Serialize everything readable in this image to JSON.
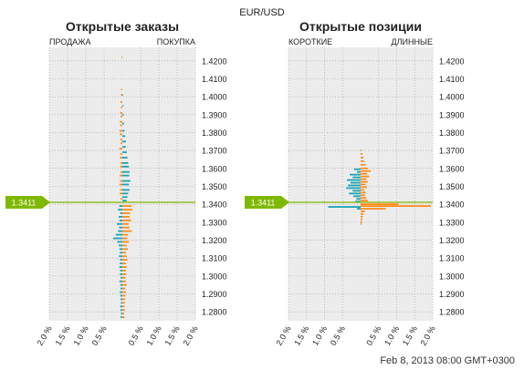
{
  "header": {
    "symbol": "EUR/USD"
  },
  "footer": {
    "timestamp": "Feb 8, 2013 08:00 GMT+0300"
  },
  "current_price_label": "1.3411",
  "colors": {
    "left_side": "#1aa3b3",
    "right_side": "#ff8c1a",
    "price_line": "#7fb800",
    "plot_bg": "#ececec",
    "grid": "#aaaaaa"
  },
  "chart_data": [
    {
      "type": "bar",
      "title": "Открытые заказы",
      "left_label": "ПРОДАЖА",
      "right_label": "ПОКУПКА",
      "y_ticks": [
        "1.4200",
        "1.4100",
        "1.4000",
        "1.3900",
        "1.3800",
        "1.3700",
        "1.3600",
        "1.3500",
        "1.3400",
        "1.3300",
        "1.3200",
        "1.3100",
        "1.3000",
        "1.2900",
        "1.2800"
      ],
      "x_ticks": [
        "2.0 %",
        "1.5 %",
        "1.0 %",
        "0.5 %",
        "0.5 %",
        "1.0 %",
        "1.5 %",
        "2.0 %"
      ],
      "xlim": [
        -2.0,
        2.0
      ],
      "ylim": [
        1.275,
        1.4275
      ],
      "current_price": 1.3411,
      "series": [
        {
          "name": "ПРОДАЖА",
          "points": [
            [
              1.422,
              0.02
            ],
            [
              1.412,
              0.01
            ],
            [
              1.404,
              0.03
            ],
            [
              1.401,
              0.04
            ],
            [
              1.397,
              0.05
            ],
            [
              1.394,
              0.04
            ],
            [
              1.391,
              0.06
            ],
            [
              1.389,
              0.05
            ],
            [
              1.386,
              0.07
            ],
            [
              1.384,
              0.06
            ],
            [
              1.381,
              0.08
            ],
            [
              1.379,
              0.07
            ],
            [
              1.376,
              0.06
            ],
            [
              1.374,
              0.05
            ],
            [
              1.371,
              0.08
            ],
            [
              1.368,
              0.06
            ],
            [
              1.366,
              0.07
            ],
            [
              1.363,
              0.05
            ],
            [
              1.361,
              0.06
            ],
            [
              1.358,
              0.05
            ],
            [
              1.356,
              0.07
            ],
            [
              1.353,
              0.06
            ],
            [
              1.351,
              0.08
            ],
            [
              1.348,
              0.06
            ],
            [
              1.346,
              0.07
            ],
            [
              1.343,
              0.05
            ],
            [
              1.339,
              0.08
            ],
            [
              1.337,
              0.12
            ],
            [
              1.335,
              0.06
            ],
            [
              1.333,
              0.1
            ],
            [
              1.331,
              0.08
            ],
            [
              1.329,
              0.15
            ],
            [
              1.327,
              0.09
            ],
            [
              1.325,
              0.12
            ],
            [
              1.323,
              0.18
            ],
            [
              1.321,
              0.25
            ],
            [
              1.319,
              0.14
            ],
            [
              1.317,
              0.1
            ],
            [
              1.315,
              0.08
            ],
            [
              1.313,
              0.07
            ],
            [
              1.311,
              0.09
            ],
            [
              1.309,
              0.06
            ],
            [
              1.307,
              0.07
            ],
            [
              1.305,
              0.08
            ],
            [
              1.303,
              0.06
            ],
            [
              1.301,
              0.07
            ],
            [
              1.299,
              0.05
            ],
            [
              1.297,
              0.08
            ],
            [
              1.295,
              0.06
            ],
            [
              1.293,
              0.05
            ],
            [
              1.291,
              0.07
            ],
            [
              1.289,
              0.06
            ],
            [
              1.287,
              0.05
            ],
            [
              1.285,
              0.04
            ],
            [
              1.283,
              0.06
            ],
            [
              1.281,
              0.05
            ],
            [
              1.279,
              0.04
            ],
            [
              1.277,
              0.05
            ]
          ]
        },
        {
          "name": "ПОКУПКА",
          "points": [
            [
              1.401,
              0.02
            ],
            [
              1.395,
              0.03
            ],
            [
              1.39,
              0.04
            ],
            [
              1.385,
              0.05
            ],
            [
              1.381,
              0.06
            ],
            [
              1.378,
              0.08
            ],
            [
              1.375,
              0.1
            ],
            [
              1.372,
              0.09
            ],
            [
              1.369,
              0.12
            ],
            [
              1.366,
              0.14
            ],
            [
              1.363,
              0.16
            ],
            [
              1.361,
              0.18
            ],
            [
              1.358,
              0.2
            ],
            [
              1.356,
              0.19
            ],
            [
              1.353,
              0.22
            ],
            [
              1.351,
              0.18
            ],
            [
              1.348,
              0.2
            ],
            [
              1.346,
              0.16
            ],
            [
              1.344,
              0.14
            ],
            [
              1.342,
              0.12
            ],
            [
              1.339,
              0.25
            ],
            [
              1.337,
              0.28
            ],
            [
              1.335,
              0.22
            ],
            [
              1.333,
              0.2
            ],
            [
              1.331,
              0.24
            ],
            [
              1.329,
              0.18
            ],
            [
              1.327,
              0.2
            ],
            [
              1.325,
              0.26
            ],
            [
              1.323,
              0.16
            ],
            [
              1.321,
              0.14
            ],
            [
              1.319,
              0.18
            ],
            [
              1.317,
              0.12
            ],
            [
              1.315,
              0.15
            ],
            [
              1.313,
              0.1
            ],
            [
              1.311,
              0.12
            ],
            [
              1.309,
              0.14
            ],
            [
              1.307,
              0.1
            ],
            [
              1.305,
              0.12
            ],
            [
              1.303,
              0.1
            ],
            [
              1.301,
              0.11
            ],
            [
              1.299,
              0.09
            ],
            [
              1.297,
              0.1
            ],
            [
              1.295,
              0.12
            ],
            [
              1.293,
              0.08
            ],
            [
              1.291,
              0.1
            ],
            [
              1.289,
              0.09
            ],
            [
              1.287,
              0.08
            ],
            [
              1.285,
              0.07
            ],
            [
              1.283,
              0.06
            ],
            [
              1.281,
              0.07
            ],
            [
              1.279,
              0.05
            ],
            [
              1.277,
              0.06
            ]
          ]
        }
      ]
    },
    {
      "type": "bar",
      "title": "Открытые позиции",
      "left_label": "КОРОТКИЕ",
      "right_label": "ДЛИННЫЕ",
      "y_ticks": [
        "1.4200",
        "1.4100",
        "1.4000",
        "1.3900",
        "1.3800",
        "1.3700",
        "1.3600",
        "1.3500",
        "1.3400",
        "1.3300",
        "1.3200",
        "1.3100",
        "1.3000",
        "1.2900",
        "1.2800"
      ],
      "x_ticks": [
        "2.0 %",
        "1.5 %",
        "1.0 %",
        "0.5 %",
        "0.5 %",
        "1.0 %",
        "1.5 %",
        "2.0 %"
      ],
      "xlim": [
        -2.0,
        2.0
      ],
      "ylim": [
        1.275,
        1.4275
      ],
      "current_price": 1.3411,
      "series": [
        {
          "name": "КОРОТКИЕ",
          "points": [
            [
              1.3595,
              0.18
            ],
            [
              1.358,
              0.1
            ],
            [
              1.3565,
              0.3
            ],
            [
              1.355,
              0.22
            ],
            [
              1.3535,
              0.38
            ],
            [
              1.352,
              0.28
            ],
            [
              1.3505,
              0.35
            ],
            [
              1.349,
              0.4
            ],
            [
              1.3475,
              0.22
            ],
            [
              1.346,
              0.32
            ],
            [
              1.3445,
              0.2
            ],
            [
              1.343,
              0.12
            ],
            [
              1.3415,
              0.15
            ],
            [
              1.3385,
              0.9
            ],
            [
              1.3375,
              0.1
            ]
          ]
        },
        {
          "name": "ДЛИННЫЕ",
          "points": [
            [
              1.37,
              0.02
            ],
            [
              1.368,
              0.05
            ],
            [
              1.366,
              0.08
            ],
            [
              1.364,
              0.1
            ],
            [
              1.362,
              0.14
            ],
            [
              1.36,
              0.2
            ],
            [
              1.3585,
              0.28
            ],
            [
              1.357,
              0.18
            ],
            [
              1.3555,
              0.24
            ],
            [
              1.354,
              0.16
            ],
            [
              1.3525,
              0.2
            ],
            [
              1.351,
              0.14
            ],
            [
              1.3495,
              0.18
            ],
            [
              1.348,
              0.1
            ],
            [
              1.3465,
              0.14
            ],
            [
              1.345,
              0.12
            ],
            [
              1.3435,
              0.16
            ],
            [
              1.342,
              0.2
            ],
            [
              1.34,
              1.05
            ],
            [
              1.339,
              1.95
            ],
            [
              1.3375,
              0.7
            ],
            [
              1.336,
              0.12
            ],
            [
              1.3345,
              0.08
            ],
            [
              1.333,
              0.06
            ],
            [
              1.3315,
              0.05
            ],
            [
              1.33,
              0.04
            ],
            [
              1.329,
              0.03
            ]
          ]
        }
      ]
    }
  ]
}
